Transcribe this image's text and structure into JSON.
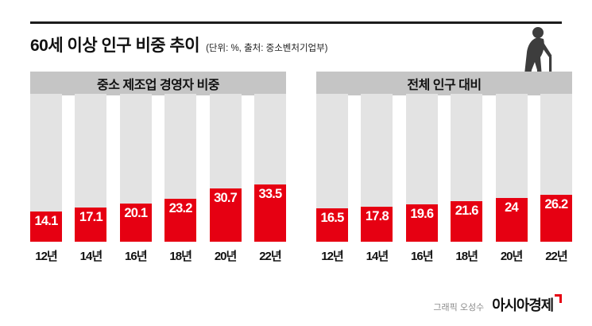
{
  "header": {
    "title": "60세 이상 인구 비중 추이",
    "subtitle": "(단위: %, 출처: 중소벤처기업부)"
  },
  "chart_data": [
    {
      "type": "bar",
      "title": "중소 제조업 경영자 비중",
      "categories": [
        "12년",
        "14년",
        "16년",
        "18년",
        "20년",
        "22년"
      ],
      "values": [
        14.1,
        17.1,
        20.1,
        23.2,
        30.7,
        33.5
      ],
      "unit": "%",
      "ylim": [
        0,
        40
      ],
      "value_labels_inside_bar": true
    },
    {
      "type": "bar",
      "title": "전체 인구 대비",
      "categories": [
        "12년",
        "14년",
        "16년",
        "18년",
        "20년",
        "22년"
      ],
      "values": [
        16.5,
        17.8,
        19.6,
        21.6,
        24,
        26.2
      ],
      "unit": "%",
      "ylim": [
        0,
        40
      ],
      "value_labels_inside_bar": true
    }
  ],
  "footer": {
    "credit": "그래픽 오성수",
    "logo_text": "아시아경제"
  },
  "colors": {
    "bar_red": "#e60012",
    "bar_gray": "#e3e3e3",
    "header_gray": "#c5c5c5",
    "rule_dark": "#1c1c1c"
  },
  "icons": {
    "elderly_person": "elderly-person-with-cane-icon"
  }
}
